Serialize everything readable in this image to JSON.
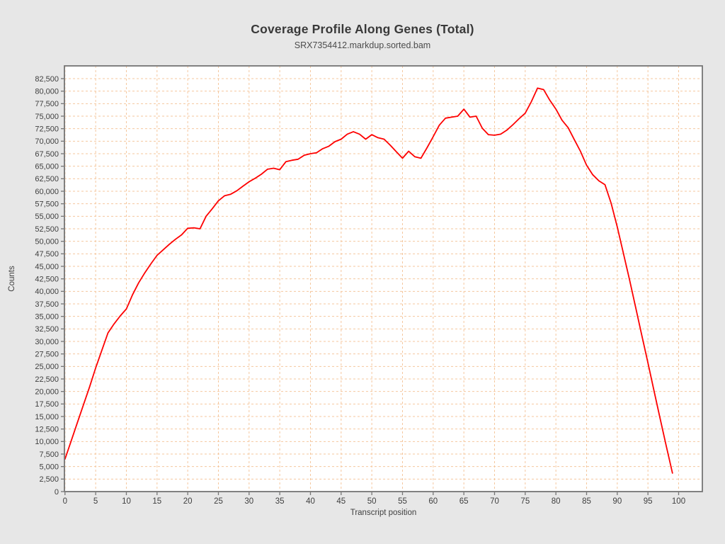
{
  "chart_data": {
    "type": "line",
    "title": "Coverage Profile Along Genes (Total)",
    "subtitle": "SRX7354412.markdup.sorted.bam",
    "xlabel": "Transcript position",
    "ylabel": "Counts",
    "xlim": [
      0,
      104
    ],
    "ylim": [
      0,
      85000
    ],
    "x_ticks": [
      0,
      5,
      10,
      15,
      20,
      25,
      30,
      35,
      40,
      45,
      50,
      55,
      60,
      65,
      70,
      75,
      80,
      85,
      90,
      95,
      100
    ],
    "y_ticks": [
      0,
      2500,
      5000,
      7500,
      10000,
      12500,
      15000,
      17500,
      20000,
      22500,
      25000,
      27500,
      30000,
      32500,
      35000,
      37500,
      40000,
      42500,
      45000,
      47500,
      50000,
      52500,
      55000,
      57500,
      60000,
      62500,
      65000,
      67500,
      70000,
      72500,
      75000,
      77500,
      80000,
      82500
    ],
    "grid": true,
    "legend_position": "none",
    "colors": {
      "line": "#fe0000",
      "grid": "#f5c79e",
      "frame": "#757575",
      "tick_text": "#3f3f3f",
      "plot_background": "#ffffff",
      "page_background": "#e7e7e7"
    },
    "series": [
      {
        "name": "SRX7354412.markdup.sorted.bam",
        "x_start": 0,
        "x_step": 1,
        "values": [
          6500,
          10100,
          13700,
          17300,
          20900,
          24700,
          28200,
          31700,
          33500,
          35100,
          36500,
          39300,
          41700,
          43700,
          45500,
          47200,
          48300,
          49400,
          50400,
          51300,
          52600,
          52700,
          52500,
          55000,
          56500,
          58100,
          59100,
          59400,
          60100,
          61000,
          61900,
          62600,
          63400,
          64400,
          64600,
          64300,
          65900,
          66200,
          66400,
          67200,
          67500,
          67700,
          68500,
          69000,
          69900,
          70400,
          71400,
          71900,
          71400,
          70400,
          71300,
          70700,
          70400,
          69200,
          67900,
          66600,
          68000,
          66900,
          66600,
          68700,
          70900,
          73200,
          74600,
          74800,
          75000,
          76400,
          74800,
          75000,
          72600,
          71300,
          71200,
          71400,
          72200,
          73300,
          74500,
          75600,
          77900,
          80600,
          80300,
          78200,
          76400,
          74200,
          72700,
          70300,
          68000,
          65200,
          63300,
          62100,
          61300,
          57600,
          52900,
          47600,
          42300,
          36800,
          31200,
          25700,
          20100,
          14500,
          9000,
          3700
        ]
      }
    ]
  }
}
